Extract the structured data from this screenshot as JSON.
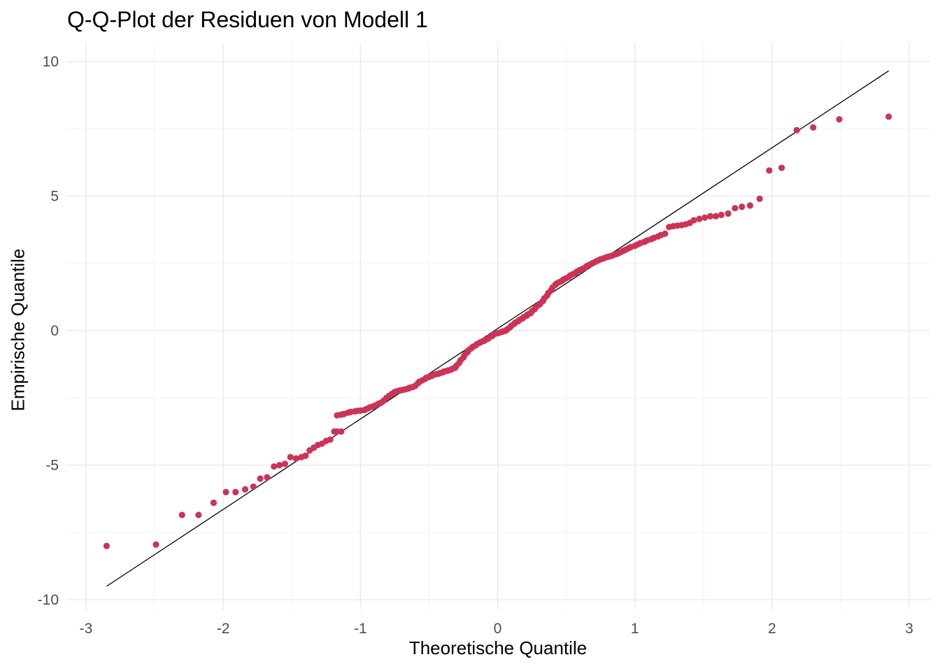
{
  "chart_data": {
    "type": "scatter",
    "title": "Q-Q-Plot der Residuen von Modell 1",
    "xlabel": "Theoretische Quantile",
    "ylabel": "Empirische Quantile",
    "xlim": [
      -3,
      3
    ],
    "ylim": [
      -10,
      10
    ],
    "x_ticks": [
      "-3",
      "-2",
      "-1",
      "0",
      "1",
      "2",
      "3"
    ],
    "y_ticks": [
      "-10",
      "-5",
      "0",
      "5",
      "10"
    ],
    "grid": true,
    "point_color": "#cc3355",
    "reference_line": {
      "x": [
        -2.85,
        2.85
      ],
      "y": [
        -9.5,
        9.65
      ],
      "color": "#000000"
    },
    "points": [
      [
        -2.85,
        -8.0
      ],
      [
        -2.49,
        -7.95
      ],
      [
        -2.3,
        -6.85
      ],
      [
        -2.18,
        -6.85
      ],
      [
        -2.07,
        -6.4
      ],
      [
        -1.98,
        -6.0
      ],
      [
        -1.91,
        -6.0
      ],
      [
        -1.84,
        -5.9
      ],
      [
        -1.78,
        -5.8
      ],
      [
        -1.73,
        -5.5
      ],
      [
        -1.68,
        -5.45
      ],
      [
        -1.63,
        -5.05
      ],
      [
        -1.59,
        -5.0
      ],
      [
        -1.55,
        -4.95
      ],
      [
        -1.51,
        -4.7
      ],
      [
        -1.47,
        -4.75
      ],
      [
        -1.43,
        -4.7
      ],
      [
        -1.4,
        -4.65
      ],
      [
        -1.37,
        -4.45
      ],
      [
        -1.34,
        -4.35
      ],
      [
        -1.31,
        -4.25
      ],
      [
        -1.28,
        -4.2
      ],
      [
        -1.25,
        -4.1
      ],
      [
        -1.22,
        -4.05
      ],
      [
        -1.19,
        -3.75
      ],
      [
        -1.17,
        -3.75
      ],
      [
        -1.14,
        -3.75
      ],
      [
        -1.17,
        -3.15
      ],
      [
        -1.14,
        -3.12
      ],
      [
        -1.12,
        -3.1
      ],
      [
        -1.09,
        -3.05
      ],
      [
        -1.07,
        -3.02
      ],
      [
        -1.04,
        -3.0
      ],
      [
        -1.02,
        -2.98
      ],
      [
        -1.0,
        -2.97
      ],
      [
        -0.97,
        -2.95
      ],
      [
        -0.95,
        -2.9
      ],
      [
        -0.93,
        -2.85
      ],
      [
        -0.91,
        -2.82
      ],
      [
        -0.89,
        -2.78
      ],
      [
        -0.87,
        -2.72
      ],
      [
        -0.85,
        -2.68
      ],
      [
        -0.83,
        -2.6
      ],
      [
        -0.81,
        -2.5
      ],
      [
        -0.79,
        -2.42
      ],
      [
        -0.77,
        -2.35
      ],
      [
        -0.75,
        -2.28
      ],
      [
        -0.73,
        -2.25
      ],
      [
        -0.71,
        -2.22
      ],
      [
        -0.69,
        -2.2
      ],
      [
        -0.67,
        -2.18
      ],
      [
        -0.65,
        -2.15
      ],
      [
        -0.64,
        -2.12
      ],
      [
        -0.62,
        -2.1
      ],
      [
        -0.6,
        -2.05
      ],
      [
        -0.58,
        -1.95
      ],
      [
        -0.57,
        -1.9
      ],
      [
        -0.55,
        -1.85
      ],
      [
        -0.53,
        -1.8
      ],
      [
        -0.52,
        -1.75
      ],
      [
        -0.5,
        -1.72
      ],
      [
        -0.48,
        -1.68
      ],
      [
        -0.47,
        -1.65
      ],
      [
        -0.45,
        -1.62
      ],
      [
        -0.43,
        -1.6
      ],
      [
        -0.42,
        -1.58
      ],
      [
        -0.4,
        -1.55
      ],
      [
        -0.39,
        -1.52
      ],
      [
        -0.37,
        -1.5
      ],
      [
        -0.36,
        -1.48
      ],
      [
        -0.34,
        -1.45
      ],
      [
        -0.33,
        -1.42
      ],
      [
        -0.31,
        -1.38
      ],
      [
        -0.3,
        -1.3
      ],
      [
        -0.28,
        -1.2
      ],
      [
        -0.27,
        -1.1
      ],
      [
        -0.25,
        -1.0
      ],
      [
        -0.24,
        -0.9
      ],
      [
        -0.22,
        -0.8
      ],
      [
        -0.21,
        -0.72
      ],
      [
        -0.19,
        -0.65
      ],
      [
        -0.18,
        -0.6
      ],
      [
        -0.16,
        -0.55
      ],
      [
        -0.15,
        -0.5
      ],
      [
        -0.13,
        -0.45
      ],
      [
        -0.12,
        -0.42
      ],
      [
        -0.1,
        -0.38
      ],
      [
        -0.09,
        -0.35
      ],
      [
        -0.07,
        -0.3
      ],
      [
        -0.06,
        -0.25
      ],
      [
        -0.04,
        -0.2
      ],
      [
        -0.03,
        -0.15
      ],
      [
        -0.01,
        -0.1
      ],
      [
        0.0,
        -0.1
      ],
      [
        0.01,
        -0.08
      ],
      [
        0.03,
        -0.05
      ],
      [
        0.04,
        -0.03
      ],
      [
        0.06,
        0.0
      ],
      [
        0.07,
        0.05
      ],
      [
        0.09,
        0.12
      ],
      [
        0.1,
        0.18
      ],
      [
        0.12,
        0.25
      ],
      [
        0.13,
        0.3
      ],
      [
        0.15,
        0.35
      ],
      [
        0.16,
        0.4
      ],
      [
        0.18,
        0.45
      ],
      [
        0.19,
        0.5
      ],
      [
        0.21,
        0.55
      ],
      [
        0.22,
        0.6
      ],
      [
        0.24,
        0.65
      ],
      [
        0.25,
        0.72
      ],
      [
        0.27,
        0.8
      ],
      [
        0.28,
        0.88
      ],
      [
        0.3,
        0.95
      ],
      [
        0.31,
        1.0
      ],
      [
        0.33,
        1.1
      ],
      [
        0.34,
        1.2
      ],
      [
        0.36,
        1.3
      ],
      [
        0.37,
        1.4
      ],
      [
        0.39,
        1.5
      ],
      [
        0.4,
        1.6
      ],
      [
        0.42,
        1.7
      ],
      [
        0.43,
        1.75
      ],
      [
        0.45,
        1.8
      ],
      [
        0.47,
        1.85
      ],
      [
        0.48,
        1.9
      ],
      [
        0.5,
        1.95
      ],
      [
        0.52,
        2.0
      ],
      [
        0.53,
        2.05
      ],
      [
        0.55,
        2.1
      ],
      [
        0.57,
        2.15
      ],
      [
        0.58,
        2.2
      ],
      [
        0.6,
        2.25
      ],
      [
        0.62,
        2.3
      ],
      [
        0.64,
        2.35
      ],
      [
        0.65,
        2.4
      ],
      [
        0.67,
        2.45
      ],
      [
        0.69,
        2.5
      ],
      [
        0.71,
        2.55
      ],
      [
        0.73,
        2.6
      ],
      [
        0.75,
        2.65
      ],
      [
        0.77,
        2.68
      ],
      [
        0.79,
        2.72
      ],
      [
        0.81,
        2.75
      ],
      [
        0.83,
        2.78
      ],
      [
        0.85,
        2.82
      ],
      [
        0.87,
        2.85
      ],
      [
        0.89,
        2.9
      ],
      [
        0.91,
        2.95
      ],
      [
        0.93,
        3.0
      ],
      [
        0.95,
        3.05
      ],
      [
        0.97,
        3.1
      ],
      [
        1.0,
        3.15
      ],
      [
        1.02,
        3.2
      ],
      [
        1.04,
        3.25
      ],
      [
        1.07,
        3.3
      ],
      [
        1.09,
        3.35
      ],
      [
        1.12,
        3.4
      ],
      [
        1.14,
        3.45
      ],
      [
        1.17,
        3.5
      ],
      [
        1.19,
        3.55
      ],
      [
        1.22,
        3.6
      ],
      [
        1.25,
        3.85
      ],
      [
        1.28,
        3.88
      ],
      [
        1.31,
        3.9
      ],
      [
        1.34,
        3.92
      ],
      [
        1.37,
        3.95
      ],
      [
        1.4,
        4.0
      ],
      [
        1.43,
        4.1
      ],
      [
        1.47,
        4.15
      ],
      [
        1.51,
        4.2
      ],
      [
        1.55,
        4.25
      ],
      [
        1.59,
        4.25
      ],
      [
        1.63,
        4.3
      ],
      [
        1.68,
        4.35
      ],
      [
        1.73,
        4.55
      ],
      [
        1.78,
        4.6
      ],
      [
        1.84,
        4.65
      ],
      [
        1.91,
        4.9
      ],
      [
        1.98,
        5.95
      ],
      [
        2.07,
        6.05
      ],
      [
        2.18,
        7.45
      ],
      [
        2.3,
        7.55
      ],
      [
        2.49,
        7.85
      ],
      [
        2.85,
        7.95
      ]
    ]
  }
}
